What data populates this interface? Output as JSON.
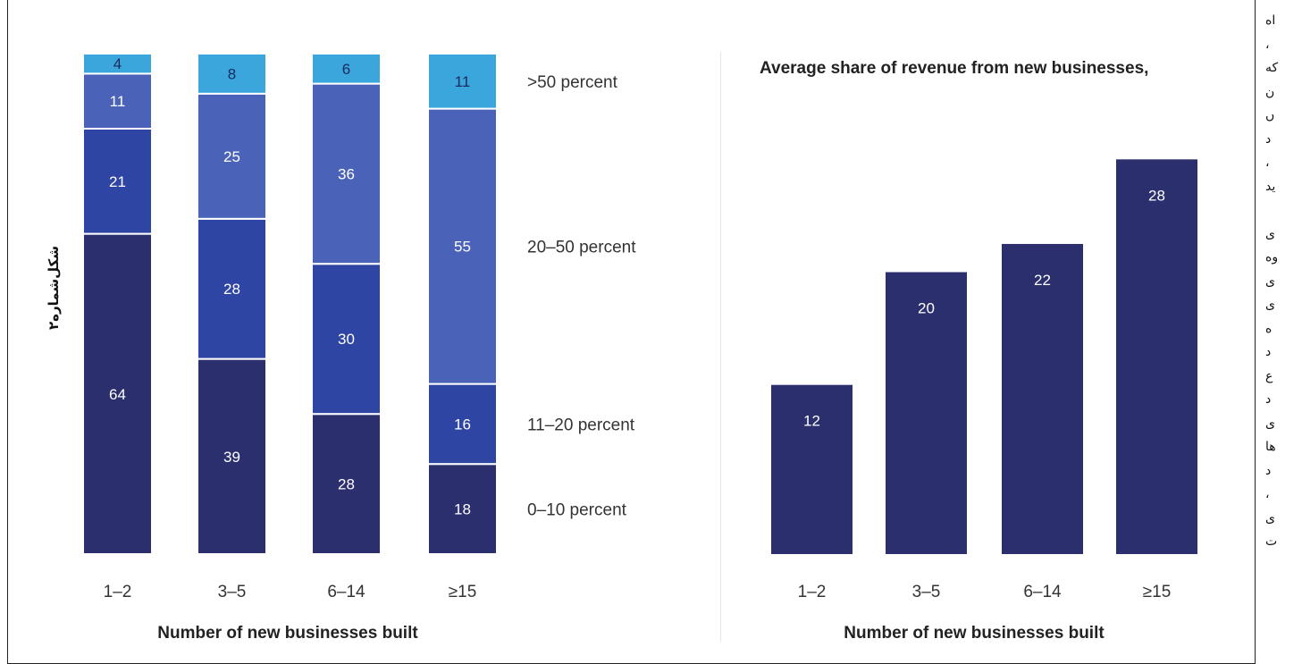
{
  "figure_label": "شکل‌شماره۲",
  "side_text": [
    "اه",
    "،",
    "که",
    "ن",
    "ں",
    "د",
    "،",
    "ید",
    "",
    "ی",
    "وه",
    "ی",
    "ی",
    "ه",
    "د",
    "ع",
    "د",
    "ی",
    "ها",
    "د",
    "،",
    "ی",
    "ت"
  ],
  "colors": {
    "0-10": "#2b2f6e",
    "11-20": "#2f45a3",
    "20-50": "#4a63b8",
    ">50": "#3aa6dc",
    "bar": "#2b2f6e"
  },
  "chart_data": [
    {
      "type": "bar",
      "stacked": true,
      "xlabel": "Number of new businesses built",
      "categories": [
        "1–2",
        "3–5",
        "6–14",
        "≥15"
      ],
      "series": [
        {
          "name": "0–10 percent",
          "values": [
            64,
            39,
            28,
            18
          ]
        },
        {
          "name": "11–20 percent",
          "values": [
            21,
            28,
            30,
            16
          ]
        },
        {
          "name": "20–50 percent",
          "values": [
            11,
            25,
            36,
            55
          ]
        },
        {
          "name": ">50 percent",
          "values": [
            4,
            8,
            6,
            11
          ]
        }
      ],
      "ylim": [
        0,
        100
      ],
      "legend": "right"
    },
    {
      "type": "bar",
      "title": "Average share of revenue from new businesses,",
      "xlabel": "Number of new businesses built",
      "categories": [
        "1–2",
        "3–5",
        "6–14",
        "≥15"
      ],
      "values": [
        12,
        20,
        22,
        28
      ],
      "ylim": [
        0,
        33.6
      ]
    }
  ]
}
